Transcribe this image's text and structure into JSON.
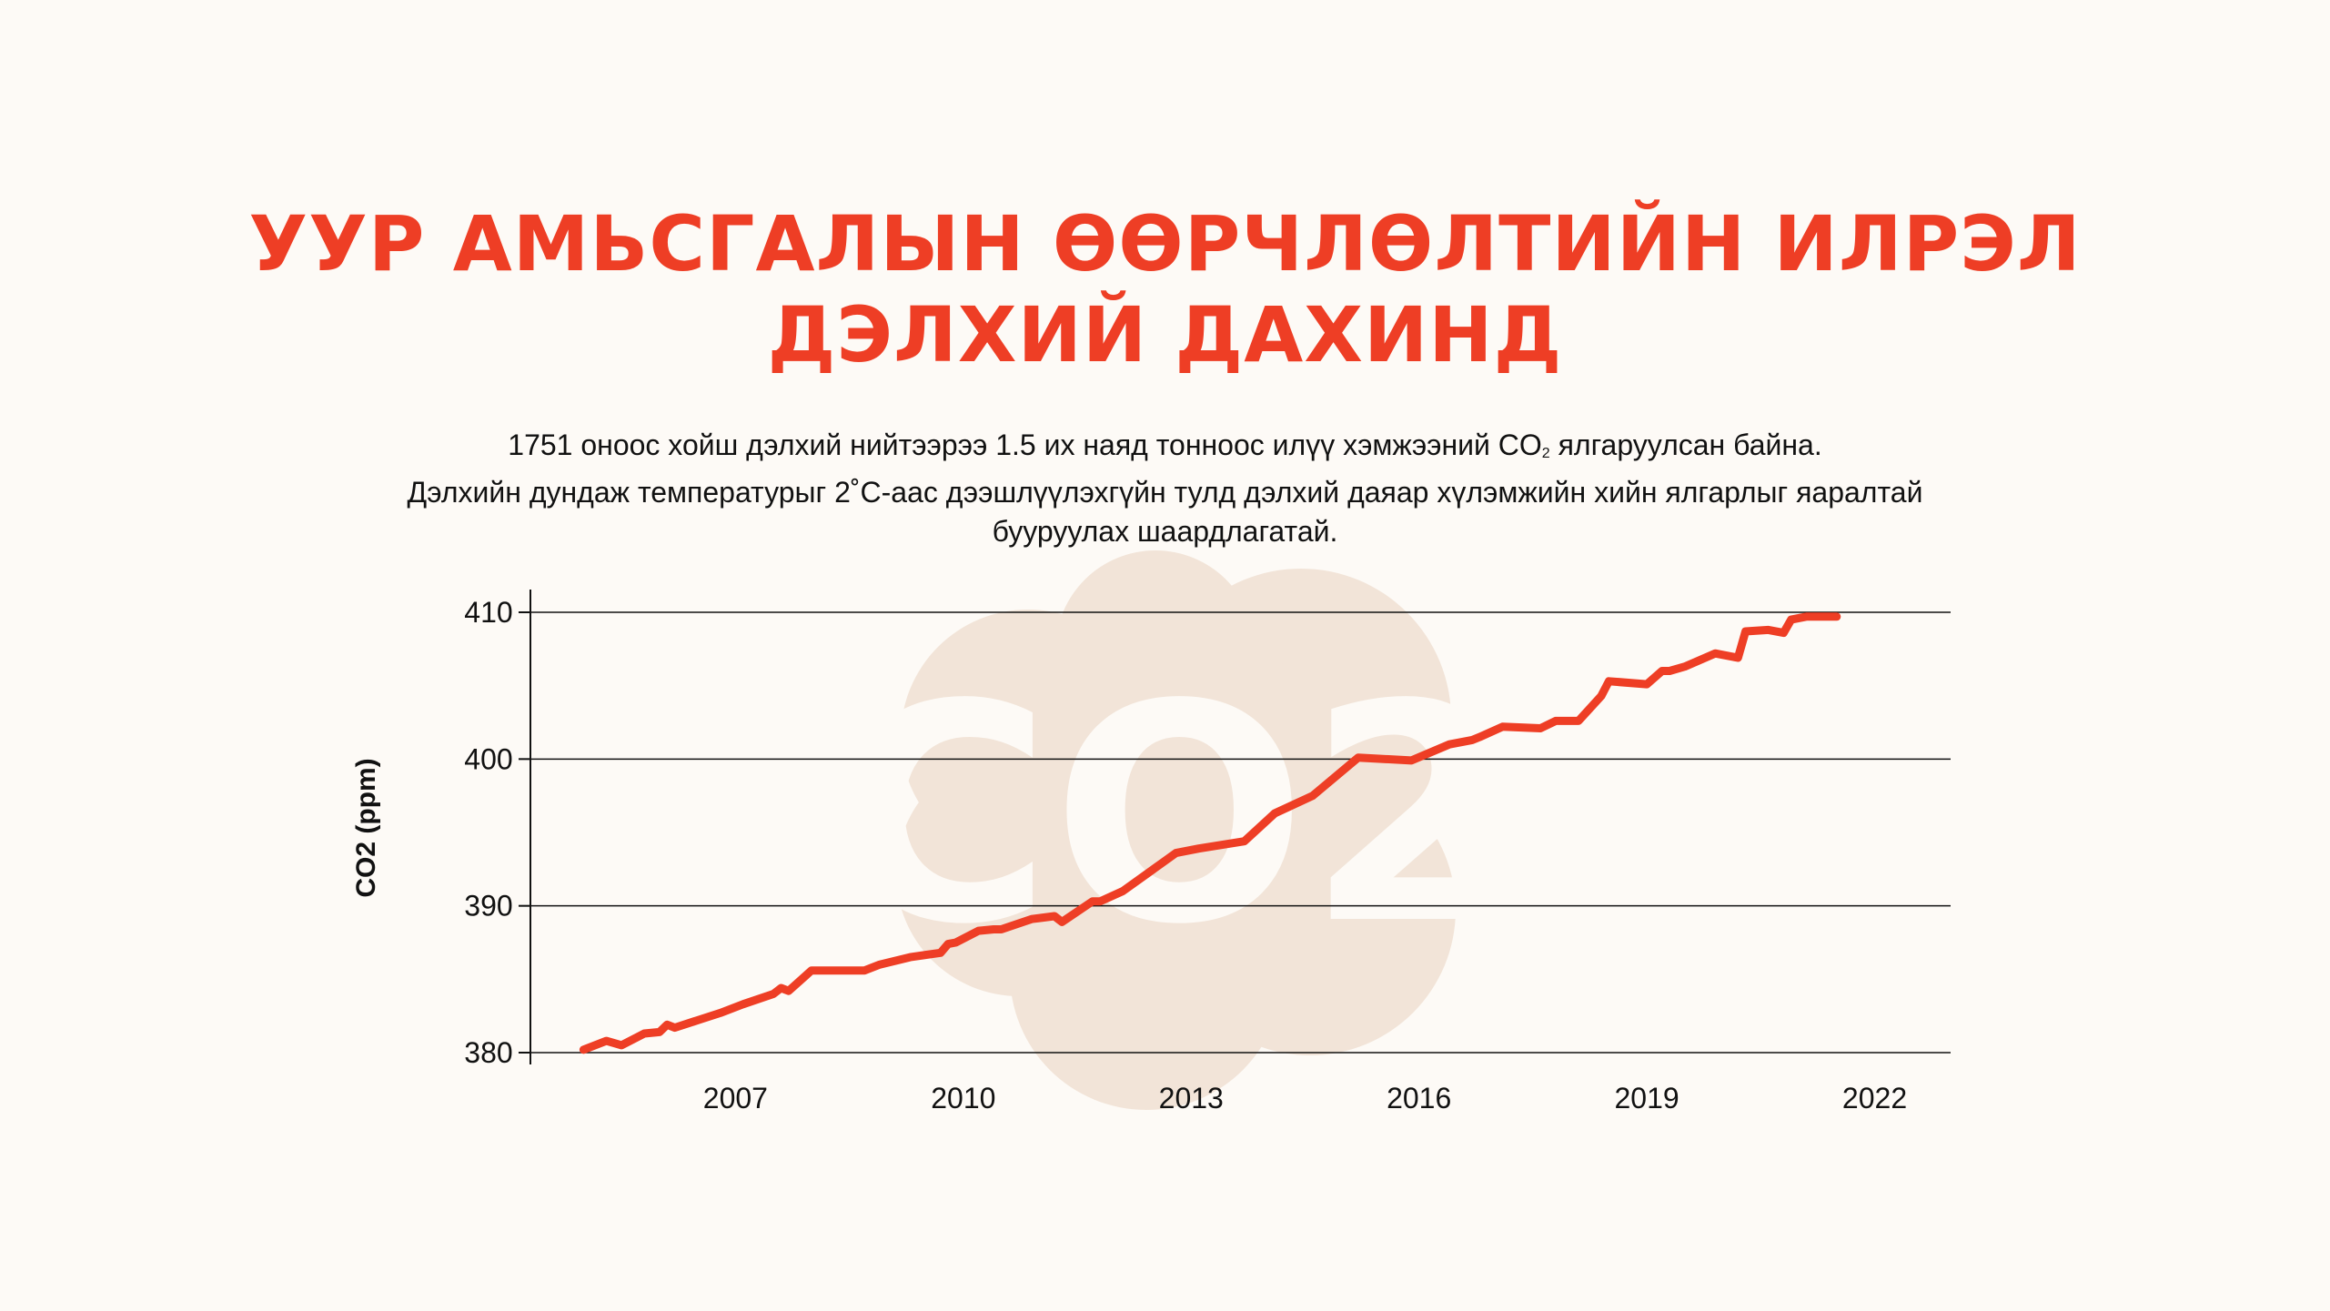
{
  "title": {
    "line1": "УУР АМЬСГАЛЫН ӨӨРЧЛӨЛТИЙН ИЛРЭЛ",
    "line2": "ДЭЛХИЙ ДАХИНД"
  },
  "subtitle": {
    "line1_before": "1751 оноос хойш дэлхий нийтээрээ 1.5 их наяд тонноос илүү хэмжээний CO",
    "line1_sub": "2",
    "line1_after": " ялгаруулсан байна.",
    "line2": "Дэлхийн дундаж температурыг 2˚C-аас дээшлүүлэхгүйн тулд дэлхий даяар хүлэмжийн хийн ялгарлыг яаралтай",
    "line3": "бууруулах шаардлагатай."
  },
  "background": {
    "icon": "co2-cloud-icon",
    "text": "CO2",
    "color": "#f2e4d8"
  },
  "colors": {
    "accent": "#ee3e25",
    "line": "#ee3e25",
    "grid": "#111111"
  },
  "chart_data": {
    "type": "line",
    "ylabel": "CO2 (ppm)",
    "xlabel": "",
    "ylim": [
      380,
      410
    ],
    "xlim": [
      2004.3,
      2023.0
    ],
    "yticks": [
      380,
      390,
      400,
      410
    ],
    "xticks": [
      2007,
      2010,
      2013,
      2016,
      2019,
      2022
    ],
    "grid": "horizontal",
    "series": [
      {
        "x": [
          2005.0,
          2005.3,
          2005.5,
          2005.8,
          2006.0,
          2006.1,
          2006.2,
          2006.5,
          2006.8,
          2007.1,
          2007.5,
          2007.6,
          2007.7,
          2008.0,
          2008.4,
          2008.7,
          2008.9,
          2009.3,
          2009.7,
          2009.8,
          2009.9,
          2010.2,
          2010.4,
          2010.5,
          2010.9,
          2011.2,
          2011.3,
          2011.7,
          2011.8,
          2012.1,
          2012.8,
          2013.1,
          2013.7,
          2014.1,
          2014.6,
          2015.2,
          2015.9,
          2016.4,
          2016.7,
          2016.8,
          2017.1,
          2017.6,
          2017.8,
          2018.1,
          2018.4,
          2018.5,
          2019.0,
          2019.2,
          2019.3,
          2019.5,
          2019.9,
          2020.2,
          2020.3,
          2020.6,
          2020.8,
          2020.9,
          2021.1,
          2021.2,
          2021.5
        ],
        "y": [
          380.2,
          380.8,
          380.5,
          381.3,
          381.4,
          381.9,
          381.7,
          382.2,
          382.7,
          383.3,
          384.0,
          384.4,
          384.2,
          385.6,
          385.6,
          385.6,
          386.0,
          386.5,
          386.8,
          387.4,
          387.5,
          388.3,
          388.4,
          388.4,
          389.1,
          389.3,
          388.9,
          390.3,
          390.3,
          391.0,
          393.6,
          393.9,
          394.4,
          396.3,
          397.5,
          400.1,
          399.9,
          401.0,
          401.3,
          401.5,
          402.2,
          402.1,
          402.6,
          402.6,
          404.3,
          405.3,
          405.1,
          406.0,
          406.0,
          406.3,
          407.2,
          406.9,
          408.7,
          408.8,
          408.6,
          409.5,
          409.7,
          409.7,
          409.7
        ]
      }
    ]
  }
}
